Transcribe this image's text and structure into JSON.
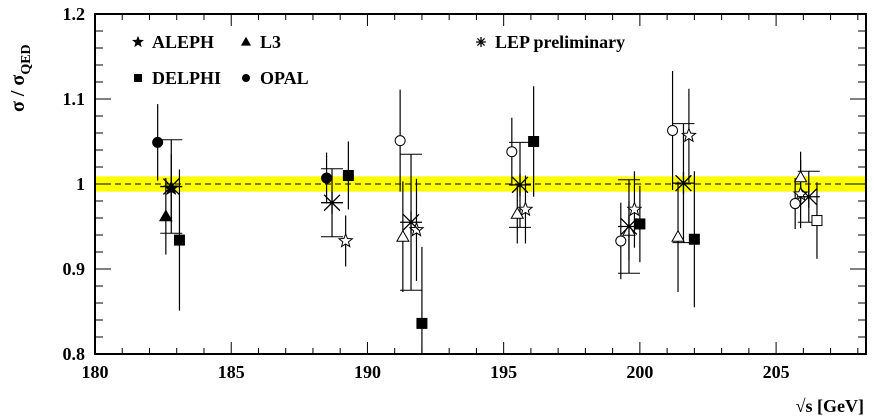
{
  "chart_data": {
    "type": "scatter",
    "xlabel": "√s [GeV]",
    "ylabel": {
      "main": "σ / σ",
      "sub": "QED"
    },
    "xlim": [
      180,
      208.3
    ],
    "ylim": [
      0.8,
      1.2
    ],
    "xticks": [
      180,
      185,
      190,
      195,
      200,
      205
    ],
    "xtick_labels": [
      "180",
      "185",
      "190",
      "195",
      "200",
      "205"
    ],
    "yticks": [
      0.8,
      0.9,
      1.0,
      1.1,
      1.2
    ],
    "ytick_labels": [
      "0.8",
      "0.9",
      "1",
      "1.1",
      "1.2"
    ],
    "reference_line": 1.0,
    "band": {
      "low": 0.991,
      "high": 1.009,
      "color": "#ffff00"
    },
    "grid": false,
    "legend": [
      {
        "label": "ALEPH",
        "marker": "star"
      },
      {
        "label": "L3",
        "marker": "triangle"
      },
      {
        "label": "LEP preliminary",
        "marker": "asterisk"
      },
      {
        "label": "DELPHI",
        "marker": "square"
      },
      {
        "label": "OPAL",
        "marker": "circle"
      }
    ],
    "series": [
      {
        "name": "ALEPH",
        "marker": "star",
        "points": [
          {
            "x": 182.8,
            "y": 0.995,
            "err": 0.04,
            "filled": true
          },
          {
            "x": 189.2,
            "y": 0.933,
            "err": 0.03,
            "filled": false
          },
          {
            "x": 191.8,
            "y": 0.946,
            "err": 0.06,
            "filled": false
          },
          {
            "x": 195.8,
            "y": 0.97,
            "err": 0.04,
            "filled": false
          },
          {
            "x": 199.8,
            "y": 0.97,
            "err": 0.045,
            "filled": false
          },
          {
            "x": 201.8,
            "y": 1.057,
            "err": 0.055,
            "filled": false
          },
          {
            "x": 205.9,
            "y": 0.988,
            "err": 0.04,
            "filled": false
          }
        ]
      },
      {
        "name": "L3",
        "marker": "triangle",
        "points": [
          {
            "x": 182.6,
            "y": 0.962,
            "err": 0.045,
            "filled": true
          },
          {
            "x": 191.3,
            "y": 0.938,
            "err": 0.065,
            "filled": false
          },
          {
            "x": 195.5,
            "y": 0.965,
            "err": 0.035,
            "filled": false
          },
          {
            "x": 199.6,
            "y": 0.945,
            "err": 0.035,
            "filled": false
          },
          {
            "x": 201.4,
            "y": 0.938,
            "err": 0.065,
            "filled": false
          },
          {
            "x": 205.9,
            "y": 1.008,
            "err": 0.03,
            "filled": false
          }
        ]
      },
      {
        "name": "DELPHI",
        "marker": "square",
        "points": [
          {
            "x": 183.1,
            "y": 0.934,
            "err": 0.083,
            "filled": true
          },
          {
            "x": 189.3,
            "y": 1.01,
            "err": 0.04,
            "filled": true
          },
          {
            "x": 192.0,
            "y": 0.836,
            "err": 0.09,
            "filled": true
          },
          {
            "x": 196.1,
            "y": 1.05,
            "err": 0.065,
            "filled": true
          },
          {
            "x": 200.0,
            "y": 0.953,
            "err": 0.045,
            "filled": true
          },
          {
            "x": 202.0,
            "y": 0.935,
            "err": 0.08,
            "filled": true
          },
          {
            "x": 206.5,
            "y": 0.957,
            "err": 0.045,
            "filled": false
          }
        ]
      },
      {
        "name": "OPAL",
        "marker": "circle",
        "points": [
          {
            "x": 182.3,
            "y": 1.049,
            "err": 0.045,
            "filled": true
          },
          {
            "x": 188.5,
            "y": 1.007,
            "err": 0.03,
            "filled": true
          },
          {
            "x": 191.2,
            "y": 1.051,
            "err": 0.06,
            "filled": false
          },
          {
            "x": 195.3,
            "y": 1.038,
            "err": 0.04,
            "filled": false
          },
          {
            "x": 199.3,
            "y": 0.933,
            "err": 0.045,
            "filled": false
          },
          {
            "x": 201.2,
            "y": 1.063,
            "err": 0.07,
            "filled": false
          },
          {
            "x": 205.7,
            "y": 0.977,
            "err": 0.03,
            "filled": false
          }
        ]
      },
      {
        "name": "LEP preliminary",
        "marker": "asterisk",
        "points": [
          {
            "x": 182.8,
            "y": 0.997,
            "err": 0.055
          },
          {
            "x": 188.7,
            "y": 0.978,
            "err": 0.04
          },
          {
            "x": 191.6,
            "y": 0.955,
            "err": 0.08
          },
          {
            "x": 195.6,
            "y": 0.999,
            "err": 0.05
          },
          {
            "x": 199.6,
            "y": 0.95,
            "err": 0.055
          },
          {
            "x": 201.6,
            "y": 1.001,
            "err": 0.07
          },
          {
            "x": 206.2,
            "y": 0.985,
            "err": 0.03
          }
        ]
      }
    ]
  }
}
